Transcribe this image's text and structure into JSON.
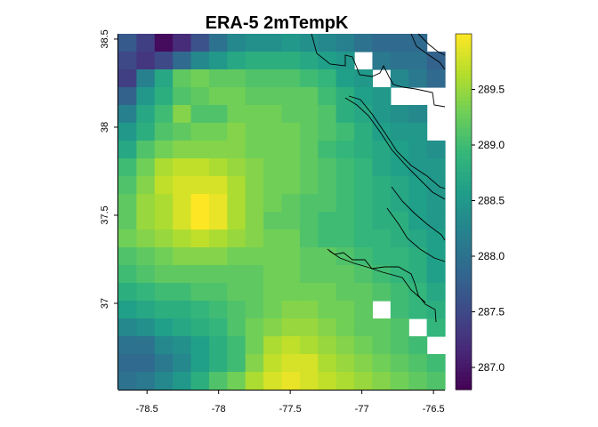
{
  "chart_data": {
    "type": "heatmap",
    "title": "ERA-5 2mTempK",
    "xlabel": "",
    "ylabel": "",
    "x_ticks": [
      -78.5,
      -78,
      -77.5,
      -77,
      -76.5
    ],
    "x_tick_labels": [
      "-78.5",
      "-78",
      "-77.5",
      "-77",
      "-76.5"
    ],
    "y_ticks": [
      37,
      37.5,
      38,
      38.5
    ],
    "y_tick_labels": [
      "37",
      "37.5",
      "38",
      "38.5"
    ],
    "xlim": [
      -78.7,
      -76.42
    ],
    "ylim": [
      36.51,
      38.53
    ],
    "colorbar": {
      "colormap": "viridis",
      "range": [
        286.8,
        290.0
      ],
      "ticks": [
        287.0,
        287.5,
        288.0,
        288.5,
        289.0,
        289.5
      ],
      "tick_labels": [
        "287.0",
        "287.5",
        "288.0",
        "288.5",
        "289.0",
        "289.5"
      ]
    },
    "grid": {
      "rows": 20,
      "cols": 18,
      "cell_size_deg": 0.1,
      "note_row_order": "rows listed from north (top) to south (bottom); null = no data",
      "values": [
        [
          287.7,
          287.4,
          286.9,
          287.2,
          287.6,
          288.0,
          288.3,
          288.4,
          288.4,
          288.5,
          288.4,
          288.3,
          288.2,
          288.0,
          287.9,
          287.9,
          287.9,
          null
        ],
        [
          287.5,
          287.3,
          287.5,
          287.9,
          288.3,
          288.5,
          288.7,
          288.8,
          288.8,
          288.8,
          288.7,
          288.6,
          288.5,
          null,
          288.1,
          288.0,
          288.0,
          287.8
        ],
        [
          287.4,
          288.2,
          288.7,
          289.2,
          289.3,
          289.2,
          289.2,
          289.1,
          289.1,
          289.1,
          289.0,
          288.9,
          288.6,
          288.5,
          null,
          288.3,
          288.1,
          287.9
        ],
        [
          287.8,
          288.5,
          288.8,
          289.1,
          289.2,
          289.3,
          289.3,
          289.2,
          289.2,
          289.2,
          289.2,
          289.0,
          288.8,
          288.6,
          288.5,
          null,
          null,
          null
        ],
        [
          288.2,
          288.7,
          289.0,
          289.4,
          289.1,
          289.1,
          289.3,
          289.3,
          289.3,
          289.2,
          289.2,
          289.1,
          288.8,
          288.7,
          288.5,
          288.4,
          288.3,
          null
        ],
        [
          288.5,
          288.8,
          289.1,
          289.2,
          289.3,
          289.3,
          289.4,
          289.3,
          289.3,
          289.3,
          289.2,
          289.1,
          289.0,
          288.8,
          288.6,
          288.5,
          288.5,
          null
        ],
        [
          288.7,
          289.1,
          289.3,
          289.4,
          289.4,
          289.4,
          289.4,
          289.3,
          289.3,
          289.3,
          289.2,
          289.0,
          288.9,
          288.8,
          288.7,
          288.6,
          288.5,
          288.4
        ],
        [
          289.0,
          289.3,
          289.6,
          289.7,
          289.7,
          289.6,
          289.5,
          289.4,
          289.3,
          289.3,
          289.2,
          289.1,
          289.0,
          288.9,
          288.7,
          288.6,
          288.5,
          288.5
        ],
        [
          289.1,
          289.4,
          289.7,
          289.8,
          289.8,
          289.8,
          289.6,
          289.4,
          289.3,
          289.3,
          289.2,
          289.1,
          289.0,
          288.9,
          288.8,
          288.7,
          288.6,
          288.5
        ],
        [
          289.2,
          289.5,
          289.6,
          289.8,
          290.0,
          289.9,
          289.6,
          289.4,
          289.3,
          289.2,
          289.1,
          289.1,
          289.0,
          288.9,
          288.8,
          288.7,
          288.6,
          288.5
        ],
        [
          289.2,
          289.5,
          289.6,
          289.8,
          290.0,
          289.9,
          289.6,
          289.4,
          289.2,
          289.2,
          289.1,
          289.0,
          289.0,
          288.9,
          288.8,
          288.8,
          288.6,
          288.5
        ],
        [
          289.3,
          289.4,
          289.5,
          289.6,
          289.7,
          289.6,
          289.5,
          289.4,
          289.3,
          289.3,
          289.1,
          289.0,
          289.0,
          288.9,
          288.9,
          288.8,
          288.7,
          288.6
        ],
        [
          289.1,
          289.2,
          289.3,
          289.4,
          289.4,
          289.4,
          289.3,
          289.3,
          289.3,
          289.3,
          289.2,
          289.2,
          289.1,
          289.0,
          288.9,
          288.9,
          288.8,
          288.6
        ],
        [
          289.0,
          289.1,
          289.2,
          289.2,
          289.2,
          289.2,
          289.2,
          289.2,
          289.3,
          289.3,
          289.2,
          289.2,
          289.2,
          289.1,
          289.0,
          288.9,
          288.8,
          288.6
        ],
        [
          288.8,
          288.9,
          289.0,
          289.0,
          289.1,
          289.1,
          289.2,
          289.2,
          289.3,
          289.3,
          289.3,
          289.3,
          289.2,
          289.2,
          289.1,
          289.0,
          288.9,
          288.7
        ],
        [
          288.6,
          288.7,
          288.8,
          288.8,
          288.9,
          289.0,
          289.1,
          289.2,
          289.3,
          289.4,
          289.4,
          289.3,
          289.3,
          289.2,
          null,
          289.0,
          288.9,
          288.8
        ],
        [
          288.3,
          288.4,
          288.6,
          288.7,
          288.8,
          288.9,
          289.1,
          289.3,
          289.4,
          289.5,
          289.5,
          289.4,
          289.3,
          289.2,
          289.2,
          289.1,
          null,
          288.9
        ],
        [
          288.0,
          288.0,
          288.3,
          288.4,
          288.6,
          288.8,
          289.0,
          289.3,
          289.6,
          289.7,
          289.6,
          289.5,
          289.4,
          289.3,
          289.2,
          289.1,
          289.0,
          null
        ],
        [
          287.9,
          287.9,
          288.1,
          288.3,
          288.6,
          288.8,
          289.0,
          289.4,
          289.7,
          289.8,
          289.8,
          289.6,
          289.5,
          289.4,
          289.3,
          289.2,
          289.1,
          289.0
        ],
        [
          288.0,
          288.1,
          288.3,
          288.5,
          288.8,
          289.1,
          289.3,
          289.6,
          289.8,
          289.9,
          289.8,
          289.7,
          289.6,
          289.5,
          289.4,
          289.3,
          289.2,
          289.1
        ]
      ]
    },
    "coastline_overlay": true
  }
}
